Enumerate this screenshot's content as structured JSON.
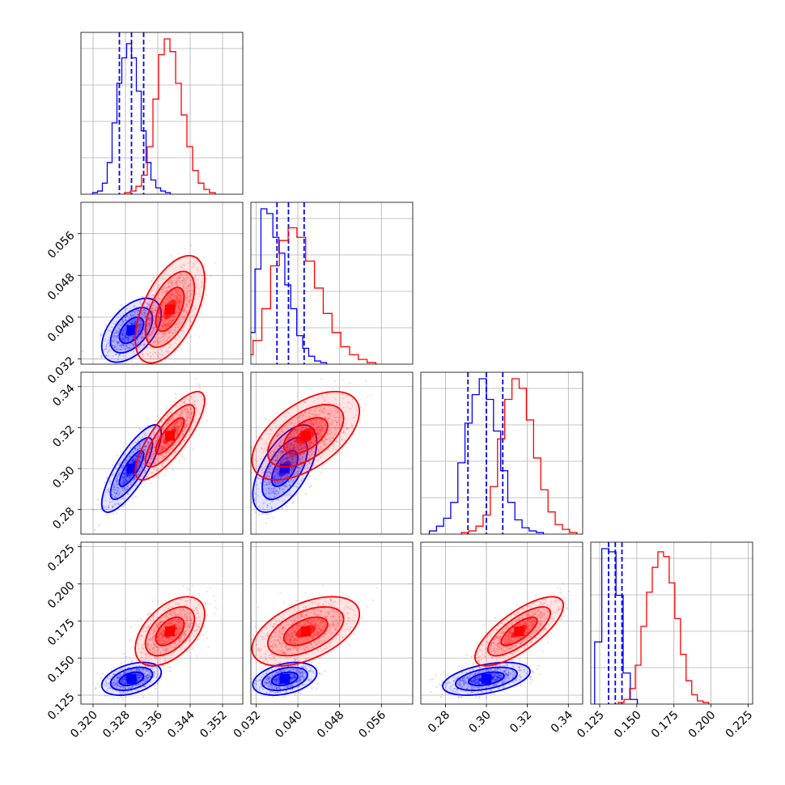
{
  "chart_data": {
    "type": "corner",
    "parameters": [
      {
        "range": [
          0.317,
          0.357
        ],
        "ticks": [
          "0.320",
          "0.328",
          "0.336",
          "0.344",
          "0.352"
        ]
      },
      {
        "range": [
          0.031,
          0.062
        ],
        "ticks": [
          "0.032",
          "0.040",
          "0.048",
          "0.056"
        ]
      },
      {
        "range": [
          0.268,
          0.347
        ],
        "ticks": [
          "0.28",
          "0.30",
          "0.32",
          "0.34"
        ]
      },
      {
        "range": [
          0.119,
          0.228
        ],
        "ticks": [
          "0.125",
          "0.150",
          "0.175",
          "0.200",
          "0.225"
        ]
      }
    ],
    "series": [
      {
        "color": "#0000ff",
        "means": [
          0.3295,
          0.0375,
          0.3,
          0.136
        ],
        "sds": [
          0.003,
          0.0025,
          0.0087,
          0.0045
        ],
        "correlations": [
          [
            0,
            1,
            0.5
          ],
          [
            0,
            2,
            0.8
          ],
          [
            0,
            3,
            0.4
          ],
          [
            1,
            2,
            0.6
          ],
          [
            1,
            3,
            0.35
          ],
          [
            2,
            3,
            0.45
          ]
        ],
        "quantiles": [
          [
            0.3265,
            0.3295,
            0.3325
          ],
          [
            0.036,
            0.0382,
            0.0412
          ],
          [
            0.291,
            0.3,
            0.308
          ],
          [
            0.131,
            0.1355,
            0.14
          ]
        ],
        "histograms": [
          [
            1,
            2,
            7,
            20,
            45,
            70,
            86,
            95,
            86,
            65,
            40,
            20,
            9,
            4,
            2,
            1
          ],
          [
            5,
            20,
            60,
            98,
            95,
            80,
            70,
            50,
            35,
            18,
            10,
            5,
            2,
            1
          ],
          [
            2,
            5,
            10,
            20,
            45,
            70,
            88,
            98,
            85,
            65,
            40,
            20,
            9,
            4,
            2,
            1
          ],
          [
            40,
            100,
            98,
            70,
            20,
            3
          ]
        ]
      },
      {
        "color": "#ff0000",
        "means": [
          0.339,
          0.0415,
          0.316,
          0.168
        ],
        "sds": [
          0.0035,
          0.0042,
          0.0088,
          0.0095
        ],
        "correlations": [
          [
            0,
            1,
            0.55
          ],
          [
            0,
            2,
            0.8
          ],
          [
            0,
            3,
            0.5
          ],
          [
            1,
            2,
            0.55
          ],
          [
            1,
            3,
            0.5
          ],
          [
            2,
            3,
            0.75
          ]
        ],
        "quantiles": [],
        "histograms": [
          [
            1,
            2,
            5,
            12,
            30,
            60,
            88,
            98,
            90,
            70,
            50,
            30,
            15,
            7,
            3,
            1
          ],
          [
            2,
            6,
            15,
            35,
            62,
            78,
            86,
            80,
            65,
            48,
            32,
            20,
            11,
            6,
            3,
            1
          ],
          [
            1,
            2,
            5,
            12,
            30,
            60,
            85,
            98,
            92,
            72,
            48,
            28,
            14,
            6,
            3,
            1
          ],
          [
            1,
            3,
            10,
            25,
            50,
            72,
            88,
            98,
            95,
            78,
            55,
            32,
            15,
            6,
            2,
            1
          ]
        ]
      }
    ]
  }
}
